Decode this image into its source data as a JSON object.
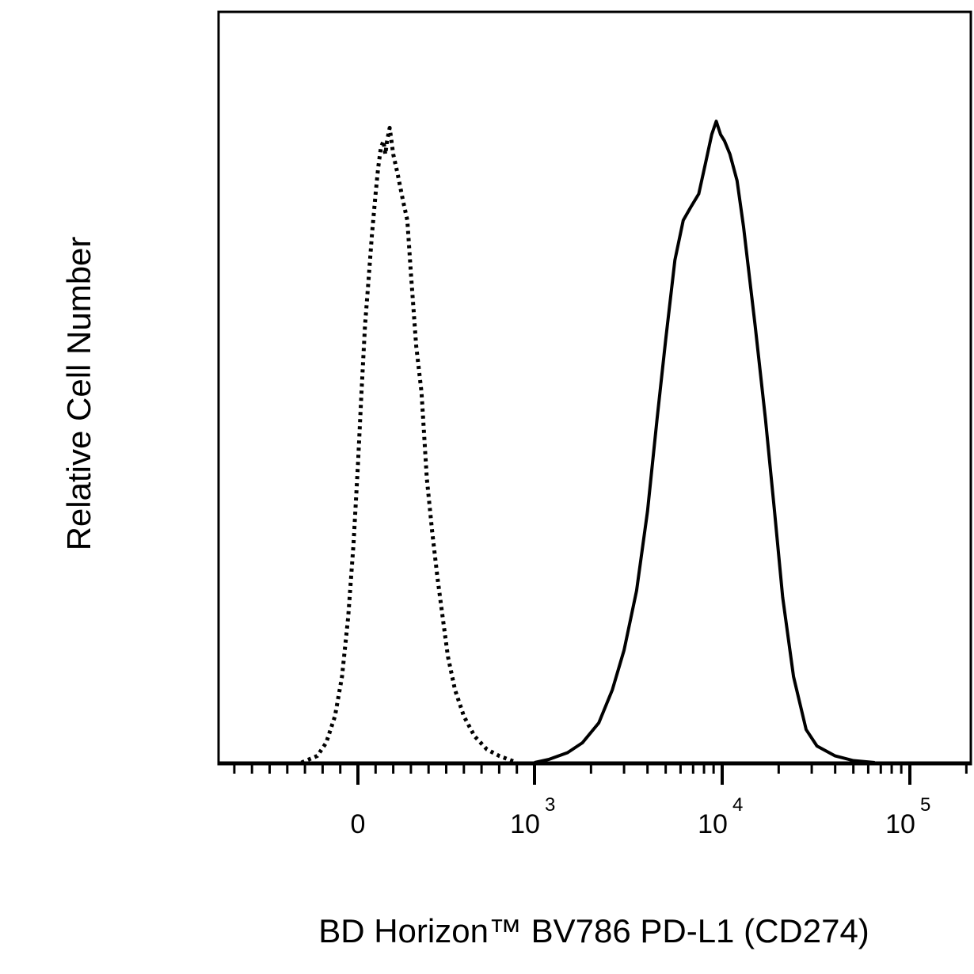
{
  "chart_data": {
    "type": "line",
    "title": "",
    "xlabel": "BD Horizon™ BV786  PD-L1 (CD274)",
    "ylabel": "Relative Cell Number",
    "x_scale": "biexponential",
    "ylim": [
      0,
      100
    ],
    "grid": false,
    "legend": "none",
    "x_ticks": [
      {
        "label": "0",
        "value": 0
      },
      {
        "label": "10",
        "exp": "3",
        "value": 1000
      },
      {
        "label": "10",
        "exp": "4",
        "value": 10000
      },
      {
        "label": "10",
        "exp": "5",
        "value": 100000
      }
    ],
    "series": [
      {
        "style": "dotted",
        "color": "#000000",
        "points": [
          [
            -320,
            0
          ],
          [
            -230,
            1
          ],
          [
            -180,
            3
          ],
          [
            -130,
            7
          ],
          [
            -90,
            13
          ],
          [
            -55,
            22
          ],
          [
            -25,
            33
          ],
          [
            0,
            45
          ],
          [
            20,
            56
          ],
          [
            40,
            66
          ],
          [
            60,
            73
          ],
          [
            80,
            80
          ],
          [
            100,
            86
          ],
          [
            115,
            90
          ],
          [
            130,
            93
          ],
          [
            145,
            94
          ],
          [
            155,
            92
          ],
          [
            165,
            94
          ],
          [
            180,
            96
          ],
          [
            200,
            92
          ],
          [
            225,
            89
          ],
          [
            255,
            85
          ],
          [
            280,
            82
          ],
          [
            300,
            74
          ],
          [
            330,
            63
          ],
          [
            360,
            56
          ],
          [
            390,
            43
          ],
          [
            420,
            35
          ],
          [
            450,
            28
          ],
          [
            480,
            22
          ],
          [
            510,
            16
          ],
          [
            550,
            11
          ],
          [
            600,
            7
          ],
          [
            660,
            4
          ],
          [
            730,
            2
          ],
          [
            800,
            1
          ],
          [
            900,
            0
          ]
        ]
      },
      {
        "style": "solid",
        "color": "#000000",
        "points": [
          [
            1000,
            0
          ],
          [
            1200,
            0.5
          ],
          [
            1500,
            1.5
          ],
          [
            1800,
            3
          ],
          [
            2200,
            6
          ],
          [
            2600,
            11
          ],
          [
            3000,
            17
          ],
          [
            3500,
            26
          ],
          [
            4000,
            38
          ],
          [
            4500,
            52
          ],
          [
            5000,
            64
          ],
          [
            5600,
            76
          ],
          [
            6200,
            82
          ],
          [
            6800,
            84
          ],
          [
            7500,
            86
          ],
          [
            8200,
            91
          ],
          [
            8800,
            95
          ],
          [
            9300,
            97
          ],
          [
            9800,
            95
          ],
          [
            10300,
            94
          ],
          [
            11000,
            92
          ],
          [
            12000,
            88
          ],
          [
            13000,
            81
          ],
          [
            15000,
            66
          ],
          [
            17000,
            52
          ],
          [
            19000,
            38
          ],
          [
            21000,
            25
          ],
          [
            24000,
            13
          ],
          [
            28000,
            5
          ],
          [
            32000,
            2.5
          ],
          [
            40000,
            1
          ],
          [
            50000,
            0.3
          ],
          [
            65000,
            0
          ]
        ]
      }
    ]
  }
}
